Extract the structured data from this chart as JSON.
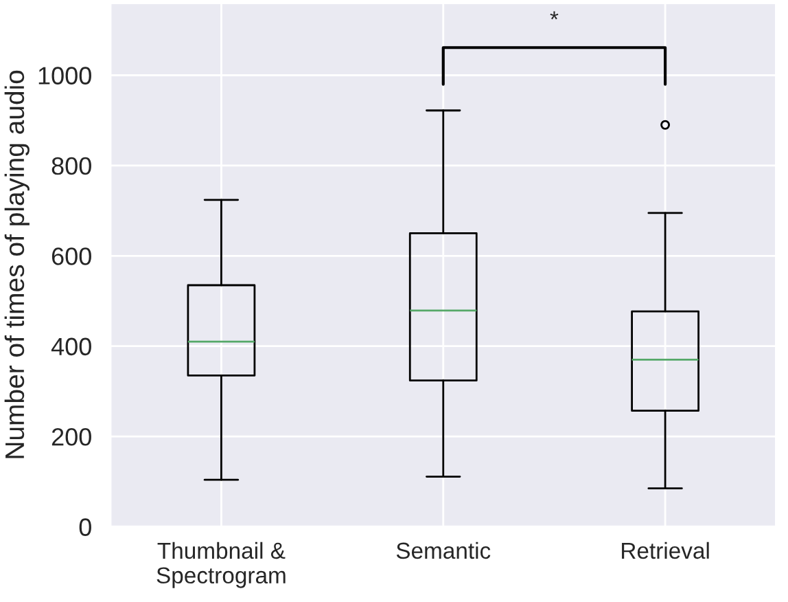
{
  "chart_data": {
    "type": "box",
    "ylabel": "Number of times of playing audio",
    "categories": [
      "Thumbnail &\nSpectrogram",
      "Semantic",
      "Retrieval"
    ],
    "boxes": [
      {
        "low": 104,
        "q1": 335,
        "median": 410,
        "q3": 535,
        "high": 724
      },
      {
        "low": 111,
        "q1": 324,
        "median": 479,
        "q3": 650,
        "high": 922
      },
      {
        "low": 85,
        "q1": 257,
        "median": 370,
        "q3": 477,
        "high": 695,
        "outliers": [
          890
        ]
      }
    ],
    "ylim": [
      0,
      1160
    ],
    "yticks": [
      0,
      200,
      400,
      600,
      800,
      1000
    ],
    "grid": true,
    "marker": "circle",
    "annotations": [
      "*"
    ]
  }
}
